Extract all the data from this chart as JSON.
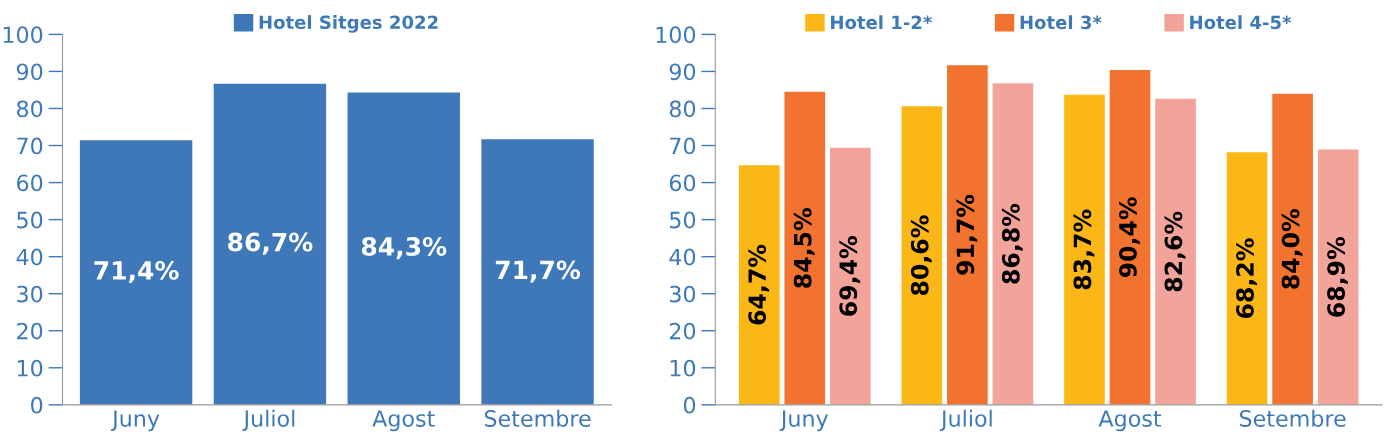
{
  "chart_data": [
    {
      "type": "bar",
      "categories": [
        "Juny",
        "Juliol",
        "Agost",
        "Setembre"
      ],
      "ylim": [
        0,
        100
      ],
      "yticks": [
        0,
        10,
        20,
        30,
        40,
        50,
        60,
        70,
        80,
        90,
        100
      ],
      "legend": "top",
      "grid": false,
      "series": [
        {
          "name": "Hotel Sitges 2022",
          "color": "#3f78b9",
          "values": [
            71.4,
            86.7,
            84.3,
            71.7
          ],
          "value_labels": [
            "71,4%",
            "86,7%",
            "84,3%",
            "71,7%"
          ]
        }
      ]
    },
    {
      "type": "bar",
      "categories": [
        "Juny",
        "Juliol",
        "Agost",
        "Setembre"
      ],
      "ylim": [
        0,
        100
      ],
      "yticks": [
        0,
        10,
        20,
        30,
        40,
        50,
        60,
        70,
        80,
        90,
        100
      ],
      "legend": "top",
      "grid": false,
      "series": [
        {
          "name": "Hotel 1-2*",
          "color": "#fbb716",
          "values": [
            64.7,
            80.6,
            83.7,
            68.2
          ],
          "value_labels": [
            "64,7%",
            "80,6%",
            "83,7%",
            "68,2%"
          ]
        },
        {
          "name": "Hotel 3*",
          "color": "#f27230",
          "values": [
            84.5,
            91.7,
            90.4,
            84.0
          ],
          "value_labels": [
            "84,5%",
            "91,7%",
            "90,4%",
            "84,0%"
          ]
        },
        {
          "name": "Hotel 4-5*",
          "color": "#f2a39a",
          "values": [
            69.4,
            86.8,
            82.6,
            68.9
          ],
          "value_labels": [
            "69,4%",
            "86,8%",
            "82,6%",
            "68,9%"
          ]
        }
      ]
    }
  ]
}
